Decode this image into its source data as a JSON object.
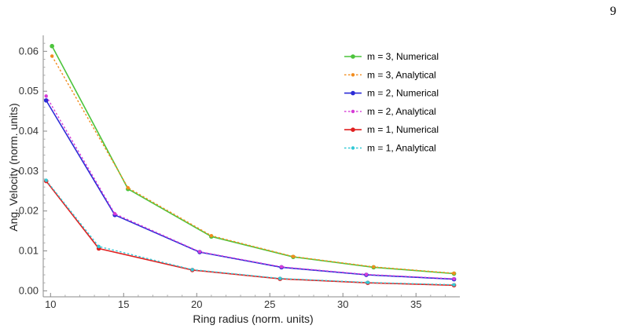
{
  "page_number": "9",
  "chart_data": {
    "type": "line",
    "xlabel": "Ring radius (norm. units)",
    "ylabel": "Ang. Velocity (norm. units)",
    "xlim": [
      9.5,
      38
    ],
    "ylim": [
      -0.0015,
      0.064
    ],
    "x_ticks": [
      10,
      15,
      20,
      25,
      30,
      35
    ],
    "x_tick_labels": [
      "10",
      "15",
      "20",
      "25",
      "30",
      "35"
    ],
    "y_ticks": [
      0.0,
      0.01,
      0.02,
      0.03,
      0.04,
      0.05,
      0.06
    ],
    "y_tick_labels": [
      "0.00",
      "0.01",
      "0.02",
      "0.03",
      "0.04",
      "0.05",
      "0.06"
    ],
    "grid": false,
    "legend_position": "top-right",
    "series": [
      {
        "name": "m = 3, Numerical",
        "style": "solid",
        "color": "#4cc43c",
        "x": [
          10.1,
          15.3,
          21.0,
          26.6,
          32.1,
          37.6
        ],
        "y": [
          0.0613,
          0.0255,
          0.0136,
          0.0085,
          0.0059,
          0.0043
        ]
      },
      {
        "name": "m = 3, Analytical",
        "style": "dotted",
        "color": "#f28c1e",
        "x": [
          10.1,
          15.3,
          21.0,
          26.6,
          32.1,
          37.6
        ],
        "y": [
          0.0588,
          0.0258,
          0.0138,
          0.0086,
          0.006,
          0.0044
        ]
      },
      {
        "name": "m = 2, Numerical",
        "style": "solid",
        "color": "#2b2bd6",
        "x": [
          9.7,
          14.4,
          20.2,
          25.8,
          31.6,
          37.6
        ],
        "y": [
          0.0477,
          0.019,
          0.0097,
          0.0059,
          0.004,
          0.0029
        ]
      },
      {
        "name": "m = 2, Analytical",
        "style": "dotted",
        "color": "#d63cd6",
        "x": [
          9.7,
          14.4,
          20.2,
          25.8,
          31.6,
          37.6
        ],
        "y": [
          0.0488,
          0.0193,
          0.0098,
          0.006,
          0.0041,
          0.003
        ]
      },
      {
        "name": "m = 1, Numerical",
        "style": "solid",
        "color": "#e02020",
        "x": [
          9.7,
          13.3,
          19.7,
          25.7,
          31.7,
          37.6
        ],
        "y": [
          0.0275,
          0.0106,
          0.0052,
          0.003,
          0.002,
          0.0014
        ]
      },
      {
        "name": "m = 1, Analytical",
        "style": "dotted",
        "color": "#33c9d6",
        "x": [
          9.7,
          13.3,
          19.7,
          25.7,
          31.7,
          37.6
        ],
        "y": [
          0.0277,
          0.0111,
          0.0053,
          0.0031,
          0.0021,
          0.0015
        ]
      }
    ]
  }
}
